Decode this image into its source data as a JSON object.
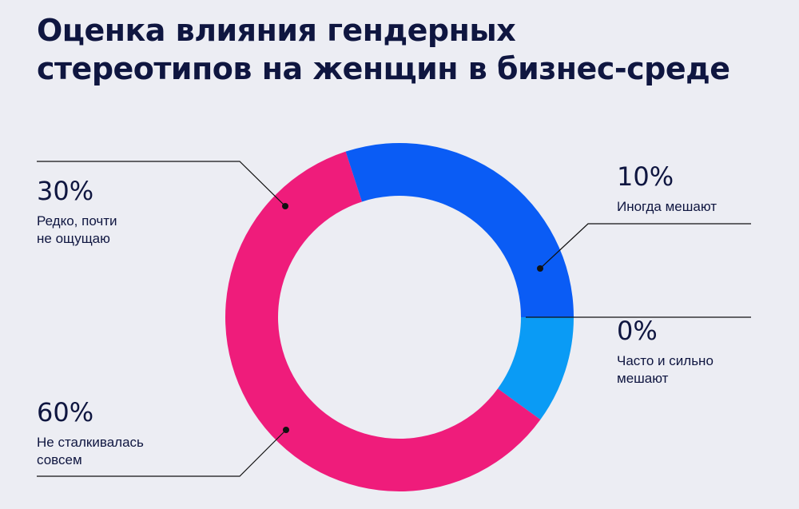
{
  "title": {
    "line1": "Оценка влияния гендерных",
    "line2": "стереотипов на женщин в бизнес-среде"
  },
  "colors": {
    "background": "#ecedf3",
    "text": "#0f1640",
    "leader": "#111111"
  },
  "chart_data": {
    "type": "pie",
    "subtype": "donut",
    "slices": [
      {
        "label": "Иногда мешают",
        "value": 10,
        "display": "10%",
        "color": "#0a9bf5"
      },
      {
        "label": "Часто и сильно мешают",
        "value": 0,
        "display": "0%",
        "color": "#ffffff"
      },
      {
        "label": "Не сталкивалась совсем",
        "value": 60,
        "display": "60%",
        "color": "#ef1c7b"
      },
      {
        "label": "Редко, почти не ощущаю",
        "value": 30,
        "display": "30%",
        "color": "#0a5cf5"
      }
    ],
    "start": "3 o'clock",
    "direction": "clockwise",
    "labels": {
      "rare": {
        "pct": "30%",
        "line1": "Редко, почти",
        "line2": "не ощущаю"
      },
      "sometimes": {
        "pct": "10%",
        "line1": "Иногда мешают"
      },
      "often": {
        "pct": "0%",
        "line1": "Часто и сильно",
        "line2": "мешают"
      },
      "never": {
        "pct": "60%",
        "line1": "Не сталкивалась",
        "line2": "совсем"
      }
    }
  }
}
